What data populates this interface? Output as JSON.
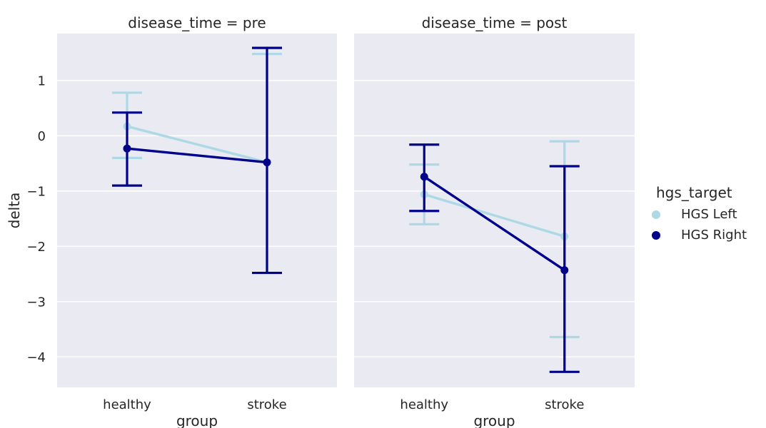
{
  "chart_data": {
    "type": "line",
    "ylabel": "delta",
    "xlabel": "group",
    "categories": [
      "healthy",
      "stroke"
    ],
    "ylim": [
      -4.55,
      1.85
    ],
    "yticks": [
      1,
      0,
      -1,
      -2,
      -3,
      -4
    ],
    "ytick_labels": [
      "1",
      "0",
      "−1",
      "−2",
      "−3",
      "−4"
    ],
    "grid": true,
    "legend": {
      "title": "hgs_target",
      "placement": "right",
      "entries": [
        "HGS Left",
        "HGS Right"
      ]
    },
    "panels": [
      {
        "title": "disease_time = pre",
        "series": [
          {
            "name": "HGS Left",
            "color": "#add8e6",
            "values": [
              0.17,
              -0.48
            ],
            "lower": [
              -0.4,
              -2.48
            ],
            "upper": [
              0.78,
              1.48
            ]
          },
          {
            "name": "HGS Right",
            "color": "#00008b",
            "values": [
              -0.23,
              -0.48
            ],
            "lower": [
              -0.9,
              -2.48
            ],
            "upper": [
              0.42,
              1.59
            ]
          }
        ]
      },
      {
        "title": "disease_time = post",
        "series": [
          {
            "name": "HGS Left",
            "color": "#add8e6",
            "values": [
              -1.06,
              -1.82
            ],
            "lower": [
              -1.6,
              -3.64
            ],
            "upper": [
              -0.52,
              -0.1
            ]
          },
          {
            "name": "HGS Right",
            "color": "#00008b",
            "values": [
              -0.74,
              -2.43
            ],
            "lower": [
              -1.36,
              -4.27
            ],
            "upper": [
              -0.16,
              -0.55
            ]
          }
        ]
      }
    ]
  }
}
